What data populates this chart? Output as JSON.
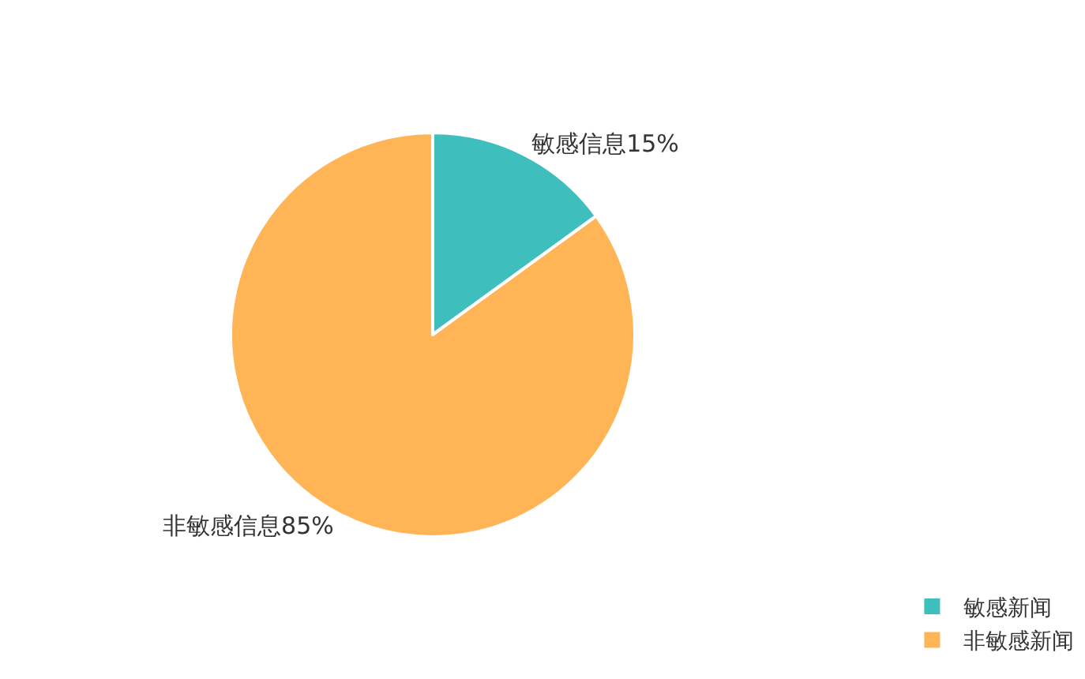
{
  "chart_data": {
    "type": "pie",
    "categories": [
      "敏感新闻",
      "非敏感新闻"
    ],
    "values": [
      15,
      85
    ],
    "colors": [
      "#3ebfbe",
      "#ffb456"
    ],
    "value_labels": [
      "敏感信息15%",
      "非敏感信息85%"
    ],
    "legend": "bottom right"
  }
}
